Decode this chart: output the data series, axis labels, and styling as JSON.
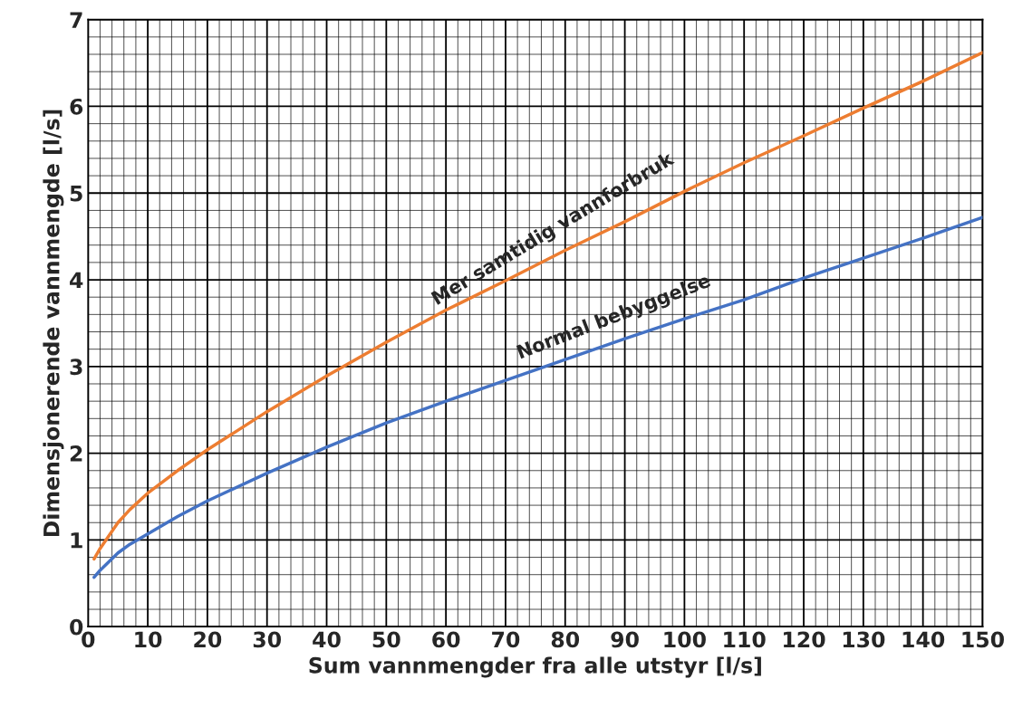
{
  "chart_data": {
    "type": "line",
    "xlabel": "Sum vannmengder fra alle utstyr [l/s]",
    "ylabel": "Dimensjonerende vannmengde [l/s]",
    "x": [
      1,
      2,
      5,
      7,
      10,
      15,
      20,
      30,
      40,
      50,
      60,
      70,
      80,
      90,
      100,
      110,
      120,
      130,
      140,
      150
    ],
    "series": [
      {
        "color": "#ed7d31",
        "values": [
          0.78,
          0.9,
          1.2,
          1.35,
          1.54,
          1.8,
          2.04,
          2.48,
          2.89,
          3.28,
          3.65,
          3.99,
          4.34,
          4.67,
          5.02,
          5.35,
          5.66,
          5.98,
          6.29,
          6.62
        ]
      },
      {
        "color": "#4472c4",
        "values": [
          0.57,
          0.65,
          0.85,
          0.95,
          1.07,
          1.27,
          1.45,
          1.77,
          2.07,
          2.35,
          2.6,
          2.84,
          3.08,
          3.32,
          3.55,
          3.77,
          4.02,
          4.25,
          4.48,
          4.72
        ]
      }
    ],
    "annotations": [
      {
        "text": "Mer samtidig vannforbruk",
        "x": 80,
        "y": 4.34
      },
      {
        "text": "Normal bebyggelse",
        "x": 90,
        "y": 3.32
      }
    ],
    "xlim": [
      0,
      150
    ],
    "xticks": [
      0,
      10,
      20,
      30,
      40,
      50,
      60,
      70,
      80,
      90,
      100,
      110,
      120,
      130,
      140,
      150
    ],
    "ylim": [
      0,
      7
    ],
    "yticks": [
      0,
      1,
      2,
      3,
      4,
      5,
      6,
      7
    ],
    "grid": true,
    "marker": "none",
    "line_style": "solid"
  }
}
